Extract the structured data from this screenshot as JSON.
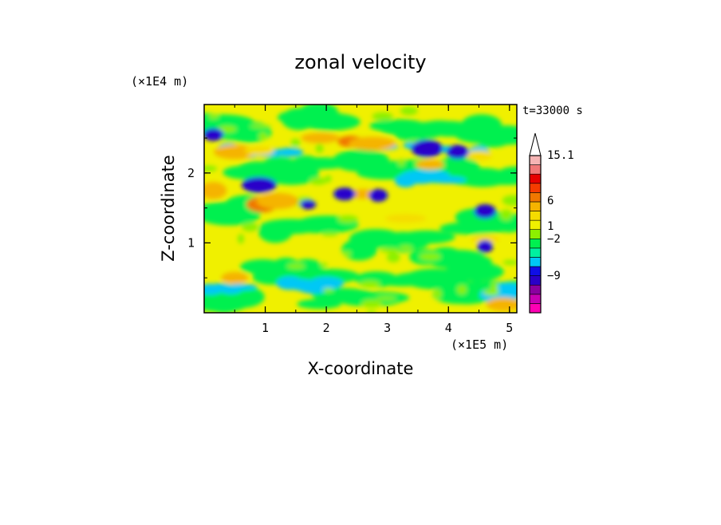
{
  "chart_data": {
    "type": "heatmap",
    "title": "zonal velocity",
    "xlabel": "X-coordinate",
    "ylabel": "Z-coordinate",
    "x_scale_label": "(×1E5 m)",
    "y_scale_label": "(×1E4 m)",
    "time_label": "t=33000 s",
    "xlim": [
      0,
      5.12
    ],
    "ylim": [
      0,
      2.98
    ],
    "x_ticks": [
      "1",
      "2",
      "3",
      "4",
      "5"
    ],
    "y_ticks": [
      "1",
      "2"
    ],
    "colorbar": {
      "labels": [
        "15.1",
        "6",
        "1",
        "−2",
        "−9"
      ],
      "colors": [
        "#ff00b4",
        "#c800b4",
        "#8a00a0",
        "#2a00c8",
        "#0f0fe6",
        "#00c8f5",
        "#00f0a0",
        "#00f050",
        "#8cf000",
        "#f0f000",
        "#f5dc00",
        "#f5b400",
        "#f07800",
        "#f53c00",
        "#e60000",
        "#f07878",
        "#f5b4b4",
        "#ffffff"
      ]
    },
    "field_summary": "contour-filled zonal velocity field; mostly green/yellow (about -2 to 1), with orange/red bands (about 6) near Z 1.5-2.7 and dark blue patches (about -9) near Z 1.2-2.4"
  }
}
